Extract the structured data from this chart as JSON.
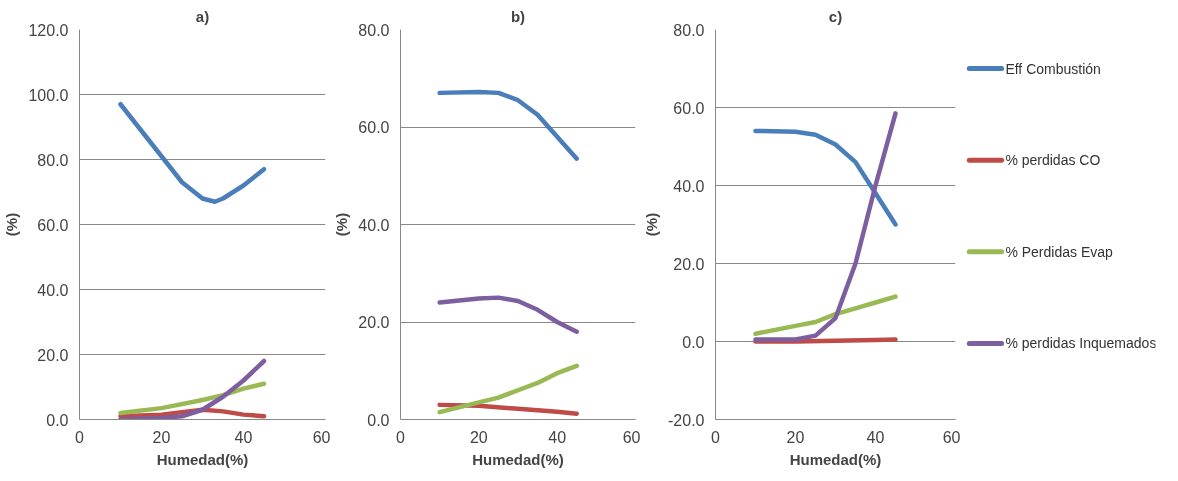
{
  "chart_data": [
    {
      "type": "line",
      "title": "a)",
      "xlabel": "Humedad(%)",
      "ylabel": "(%)",
      "xlim": [
        0,
        60
      ],
      "xticks": [
        0,
        20,
        40,
        60
      ],
      "ylim": [
        0,
        120
      ],
      "yticks": [
        {
          "value": 0,
          "label": "0.0"
        },
        {
          "value": 20,
          "label": "20.0"
        },
        {
          "value": 40,
          "label": "40.0"
        },
        {
          "value": 60,
          "label": "60.0"
        },
        {
          "value": 80,
          "label": "80.0"
        },
        {
          "value": 100,
          "label": "100.0"
        },
        {
          "value": 120,
          "label": "120.0"
        }
      ],
      "grid": "y",
      "legend": false,
      "line_style": "solid",
      "marker": "none",
      "series": [
        {
          "color": "#4a7ebb",
          "x": [
            10,
            15,
            20,
            25,
            30,
            33,
            35,
            40,
            45
          ],
          "values": [
            97,
            89,
            81,
            73,
            68,
            67,
            68,
            72,
            77
          ]
        },
        {
          "color": "#be4b48",
          "x": [
            10,
            20,
            30,
            35,
            40,
            45
          ],
          "values": [
            1,
            1.5,
            3,
            2.5,
            1.5,
            1
          ]
        },
        {
          "color": "#98b954",
          "x": [
            10,
            20,
            30,
            35,
            40,
            45
          ],
          "values": [
            2,
            3.5,
            6,
            7.5,
            9.5,
            11
          ]
        },
        {
          "color": "#7d5fa0",
          "x": [
            10,
            20,
            25,
            30,
            35,
            40,
            45
          ],
          "values": [
            0,
            0.5,
            1,
            3,
            7,
            12,
            18
          ]
        }
      ]
    },
    {
      "type": "line",
      "title": "b)",
      "xlabel": "Humedad(%)",
      "ylabel": "(%)",
      "xlim": [
        0,
        60
      ],
      "xticks": [
        0,
        20,
        40,
        60
      ],
      "ylim": [
        0,
        80
      ],
      "yticks": [
        {
          "value": 0,
          "label": "0.0"
        },
        {
          "value": 20,
          "label": "20.0"
        },
        {
          "value": 40,
          "label": "40.0"
        },
        {
          "value": 60,
          "label": "60.0"
        },
        {
          "value": 80,
          "label": "80.0"
        }
      ],
      "grid": "y",
      "legend": false,
      "line_style": "solid",
      "marker": "none",
      "series": [
        {
          "color": "#4a7ebb",
          "x": [
            10,
            20,
            25,
            30,
            35,
            40,
            45
          ],
          "values": [
            67,
            67.2,
            67,
            65.5,
            62.5,
            58,
            53.5
          ]
        },
        {
          "color": "#be4b48",
          "x": [
            10,
            20,
            30,
            40,
            45
          ],
          "values": [
            3,
            2.8,
            2.2,
            1.6,
            1.2
          ]
        },
        {
          "color": "#98b954",
          "x": [
            10,
            20,
            25,
            30,
            35,
            40,
            45
          ],
          "values": [
            1.5,
            3.5,
            4.5,
            6,
            7.5,
            9.5,
            11
          ]
        },
        {
          "color": "#7d5fa0",
          "x": [
            10,
            20,
            25,
            30,
            35,
            40,
            45
          ],
          "values": [
            24,
            24.8,
            25,
            24.3,
            22.5,
            20,
            18
          ]
        }
      ]
    },
    {
      "type": "line",
      "title": "c)",
      "xlabel": "Humedad(%)",
      "ylabel": "(%)",
      "xlim": [
        0,
        60
      ],
      "xticks": [
        0,
        20,
        40,
        60
      ],
      "ylim": [
        -20,
        80
      ],
      "yticks": [
        {
          "value": -20,
          "label": "-20.0"
        },
        {
          "value": 0,
          "label": "0.0"
        },
        {
          "value": 20,
          "label": "20.0"
        },
        {
          "value": 40,
          "label": "40.0"
        },
        {
          "value": 60,
          "label": "60.0"
        },
        {
          "value": 80,
          "label": "80.0"
        }
      ],
      "grid": "y",
      "legend": "right",
      "line_style": "solid",
      "marker": "none",
      "series": [
        {
          "name": "Eff Combustión",
          "color": "#4a7ebb",
          "x": [
            10,
            20,
            25,
            30,
            35,
            40,
            45
          ],
          "values": [
            54,
            53.8,
            53,
            50.5,
            46,
            38,
            30
          ]
        },
        {
          "name": "% perdidas CO",
          "color": "#be4b48",
          "x": [
            10,
            20,
            30,
            40,
            45
          ],
          "values": [
            0,
            0,
            0.2,
            0.4,
            0.5
          ]
        },
        {
          "name": "% Perdidas Evap",
          "color": "#98b954",
          "x": [
            10,
            20,
            25,
            30,
            35,
            40,
            45
          ],
          "values": [
            2,
            4,
            5,
            7,
            8.5,
            10,
            11.5
          ]
        },
        {
          "name": "% perdidas Inquemados",
          "color": "#7d5fa0",
          "x": [
            10,
            20,
            25,
            30,
            35,
            40,
            45
          ],
          "values": [
            0.5,
            0.5,
            1.5,
            6,
            20,
            40,
            58.5
          ]
        }
      ]
    }
  ]
}
